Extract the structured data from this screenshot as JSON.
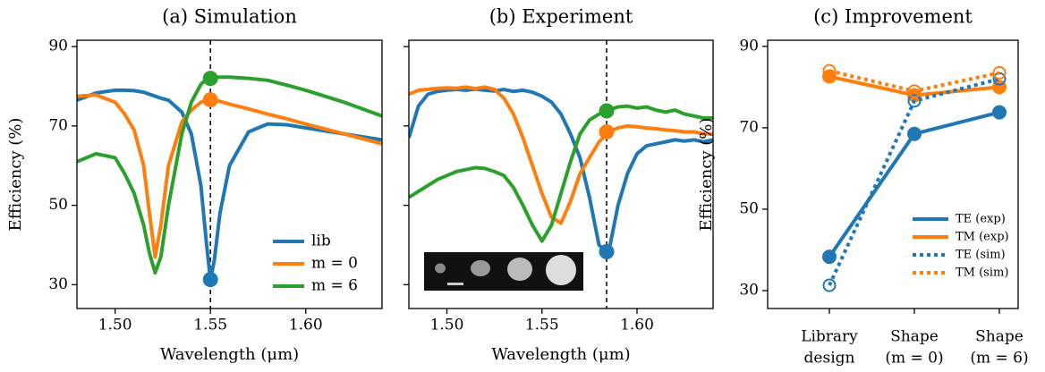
{
  "chart_data": [
    {
      "type": "line",
      "title": "(a) Simulation",
      "xlabel": "Wavelength (μm)",
      "ylabel": "Efficiency (%)",
      "x": [
        1.48,
        1.49,
        1.5,
        1.505,
        1.51,
        1.515,
        1.518,
        1.521,
        1.524,
        1.528,
        1.535,
        1.54,
        1.545,
        1.548,
        1.55,
        1.552,
        1.555,
        1.56,
        1.57,
        1.58,
        1.59,
        1.6,
        1.62,
        1.64
      ],
      "series": [
        {
          "name": "lib",
          "color": "#1f77b4",
          "values": [
            76.5,
            78.3,
            79,
            79,
            78.9,
            78.5,
            78,
            77.5,
            77,
            76.5,
            73.5,
            68,
            55,
            40,
            31.3,
            36,
            48,
            60,
            68.5,
            70.5,
            70.3,
            69.5,
            68,
            66.5
          ]
        },
        {
          "name": "m = 0",
          "color": "#ff7f0e",
          "values": [
            77.5,
            77.8,
            76,
            73,
            69,
            60,
            48,
            37,
            45,
            60,
            71,
            74,
            76,
            76.5,
            76.6,
            76.5,
            76.2,
            75.5,
            74.3,
            73,
            71.8,
            70.5,
            68,
            65.5
          ]
        },
        {
          "name": "m = 6",
          "color": "#2ca02c",
          "values": [
            61,
            63,
            62,
            58,
            53,
            45,
            38,
            33,
            37,
            50,
            68,
            76,
            80.5,
            81.8,
            82,
            82.2,
            82.3,
            82.3,
            82,
            81.5,
            80.3,
            79,
            76,
            72.5
          ]
        }
      ],
      "highlight": {
        "x": 1.55,
        "values": [
          31.3,
          76.6,
          82
        ]
      },
      "xlim": [
        1.48,
        1.64
      ],
      "ylim": [
        24,
        91.6
      ],
      "xticks": [
        {
          "value": 1.5,
          "label": "1.50"
        },
        1.55,
        {
          "value": 1.6,
          "label": "1.60"
        }
      ],
      "yticks": [
        30,
        50,
        70,
        90
      ],
      "legend": "lower right"
    },
    {
      "type": "line",
      "title": "(b) Experiment",
      "xlabel": "Wavelength (μm)",
      "x": [
        1.48,
        1.485,
        1.49,
        1.495,
        1.5,
        1.505,
        1.51,
        1.515,
        1.52,
        1.525,
        1.53,
        1.535,
        1.54,
        1.545,
        1.55,
        1.555,
        1.56,
        1.565,
        1.57,
        1.575,
        1.58,
        1.585,
        1.59,
        1.595,
        1.6,
        1.605,
        1.61,
        1.615,
        1.62,
        1.625,
        1.63,
        1.635,
        1.64
      ],
      "series": [
        {
          "color": "#1f77b4",
          "values": [
            67,
            75,
            78,
            78.7,
            79,
            79.2,
            79,
            79.3,
            79,
            78.8,
            79.2,
            78.7,
            79,
            78.5,
            77.5,
            76,
            73,
            68,
            62,
            52,
            40,
            38,
            50,
            58,
            63,
            65,
            65.5,
            66,
            66.5,
            66.2,
            66.5,
            66,
            66.5
          ]
        },
        {
          "color": "#ff7f0e",
          "values": [
            78,
            79,
            79.2,
            79.5,
            79.6,
            79.5,
            79.8,
            79.4,
            79.8,
            79.2,
            77,
            73,
            67,
            60,
            53,
            47,
            45.5,
            51,
            58,
            62,
            66,
            68.5,
            69.5,
            70,
            69.8,
            69.5,
            69.3,
            69,
            68.8,
            68.5,
            68.5,
            68,
            68
          ]
        },
        {
          "color": "#2ca02c",
          "values": [
            52,
            53.5,
            55,
            56.5,
            57.5,
            58.5,
            59,
            59.5,
            59.3,
            58.5,
            57.5,
            54.5,
            50,
            45,
            41,
            45,
            53,
            61,
            68,
            71.5,
            73,
            74,
            74.8,
            75,
            74.5,
            74.8,
            74,
            73.5,
            74,
            73,
            72.5,
            72,
            72
          ]
        }
      ],
      "highlight": {
        "x": 1.584,
        "values": [
          38.3,
          68.5,
          73.8
        ]
      },
      "xlim": [
        1.48,
        1.64
      ],
      "ylim": [
        24,
        91.6
      ],
      "xticks": [
        {
          "value": 1.5,
          "label": "1.50"
        },
        1.55,
        {
          "value": 1.6,
          "label": "1.60"
        }
      ],
      "yticks": [
        30,
        50,
        70,
        90
      ],
      "ytick_labels": false
    },
    {
      "type": "line",
      "title": "(c) Improvement",
      "ylabel": "Efficiency (%)",
      "categories": [
        [
          "Library",
          "design"
        ],
        [
          "Shape",
          "(m = 0)"
        ],
        [
          "Shape",
          "(m = 6)"
        ]
      ],
      "series": [
        {
          "name": "TE (exp)",
          "color": "#1f77b4",
          "linestyle": "solid",
          "marker": "filled",
          "values": [
            38.3,
            68.5,
            73.8
          ]
        },
        {
          "name": "TM (exp)",
          "color": "#ff7f0e",
          "linestyle": "solid",
          "marker": "filled",
          "values": [
            82.6,
            78,
            80
          ]
        },
        {
          "name": "TE (sim)",
          "color": "#1f77b4",
          "linestyle": "dotted",
          "marker": "open",
          "values": [
            31.3,
            76.6,
            82
          ]
        },
        {
          "name": "TM (sim)",
          "color": "#ff7f0e",
          "linestyle": "dotted",
          "marker": "open",
          "values": [
            84,
            79,
            83.5
          ]
        }
      ],
      "ylim": [
        25.6,
        91.5
      ],
      "yticks": [
        30,
        50,
        70,
        90
      ],
      "legend": "lower right"
    }
  ]
}
